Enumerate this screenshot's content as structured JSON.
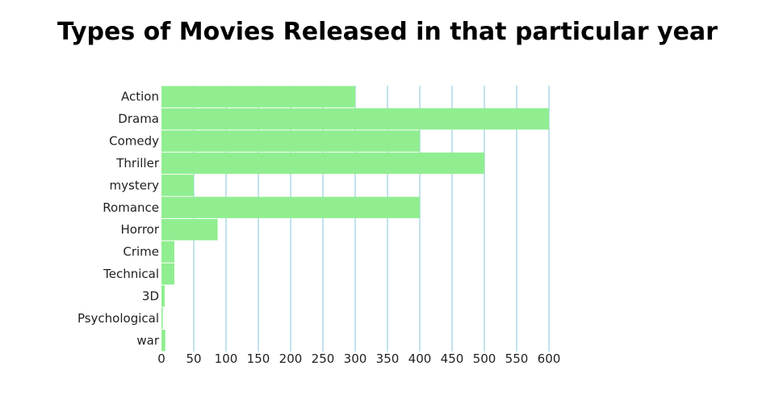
{
  "chart_data": {
    "type": "bar",
    "orientation": "horizontal",
    "title": "Types of Movies Released in that particular year",
    "xlabel": "",
    "ylabel": "",
    "categories": [
      "Action",
      "Drama",
      "Comedy",
      "Thriller",
      "mystery",
      "Romance",
      "Horror",
      "Crime",
      "Technical",
      "3D",
      "Psychological",
      "war"
    ],
    "values": [
      300,
      600,
      400,
      500,
      50,
      400,
      87,
      20,
      20,
      5,
      2,
      6
    ],
    "xlim": [
      0,
      600
    ],
    "xticks": [
      0,
      50,
      100,
      150,
      200,
      250,
      300,
      350,
      400,
      450,
      500,
      550,
      600
    ],
    "grid": "vertical",
    "legend": "none",
    "colors": {
      "bar": "#90ee90",
      "grid": "#add8e6"
    }
  }
}
